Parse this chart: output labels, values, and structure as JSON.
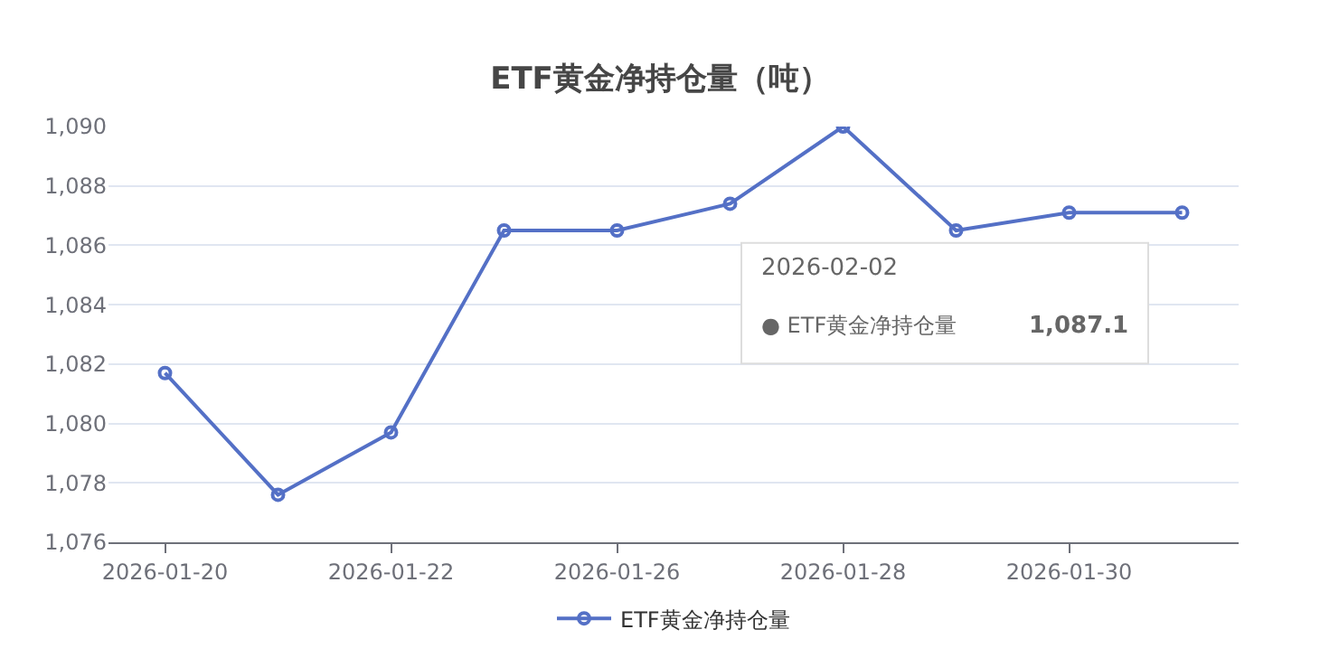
{
  "chart_data": {
    "type": "line",
    "title": "ETF黄金净持仓量（吨）",
    "categories": [
      "2026-01-20",
      null,
      "2026-01-22",
      null,
      "2026-01-26",
      null,
      "2026-01-28",
      null,
      "2026-01-30",
      null
    ],
    "series": [
      {
        "name": "ETF黄金净持仓量",
        "color": "#5470c6",
        "values": [
          1081.7,
          1077.6,
          1079.7,
          1086.5,
          1086.5,
          1087.4,
          1090.0,
          1086.5,
          1087.1,
          1087.1
        ]
      }
    ],
    "ylim": [
      1076,
      1090
    ],
    "yticks": [
      {
        "value": 1076,
        "label": "1,076"
      },
      {
        "value": 1078,
        "label": "1,078"
      },
      {
        "value": 1080,
        "label": "1,080"
      },
      {
        "value": 1082,
        "label": "1,082"
      },
      {
        "value": 1084,
        "label": "1,084"
      },
      {
        "value": 1086,
        "label": "1,086"
      },
      {
        "value": 1088,
        "label": "1,088"
      },
      {
        "value": 1090,
        "label": "1,090"
      }
    ],
    "grid": "y",
    "legend": "bottom",
    "marker": "circle",
    "line_style": "solid",
    "annotations": [
      "2026-02-02",
      "● ETF黄金净持仓量",
      "1,087.1"
    ]
  }
}
